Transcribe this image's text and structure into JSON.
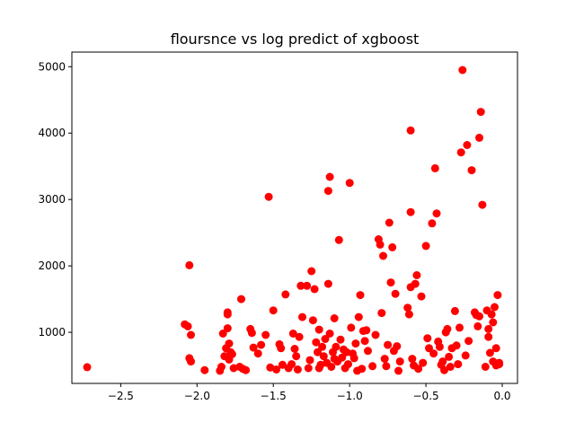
{
  "chart_data": {
    "type": "scatter",
    "title": "floursnce vs log predict of xgboost",
    "xlabel": "",
    "ylabel": "",
    "xlim": [
      -2.82,
      0.1
    ],
    "ylim": [
      230,
      5220
    ],
    "x_ticks": [
      -2.5,
      -2.0,
      -1.5,
      -1.0,
      -0.5,
      0.0
    ],
    "x_tick_labels": [
      "−2.5",
      "−2.0",
      "−1.5",
      "−1.0",
      "−0.5",
      "0.0"
    ],
    "y_ticks": [
      1000,
      2000,
      3000,
      4000,
      5000
    ],
    "y_tick_labels": [
      "1000",
      "2000",
      "3000",
      "4000",
      "5000"
    ],
    "grid": false,
    "marker_color": "#ff0000",
    "points": [
      [
        -2.72,
        475
      ],
      [
        -2.08,
        1120
      ],
      [
        -2.06,
        1090
      ],
      [
        -2.05,
        2010
      ],
      [
        -2.04,
        960
      ],
      [
        -2.05,
        610
      ],
      [
        -2.04,
        560
      ],
      [
        -1.95,
        430
      ],
      [
        -1.85,
        420
      ],
      [
        -1.84,
        480
      ],
      [
        -1.83,
        980
      ],
      [
        -1.82,
        640
      ],
      [
        -1.81,
        760
      ],
      [
        -1.8,
        1060
      ],
      [
        -1.8,
        1300
      ],
      [
        -1.8,
        1270
      ],
      [
        -1.79,
        830
      ],
      [
        -1.79,
        590
      ],
      [
        -1.78,
        700
      ],
      [
        -1.77,
        670
      ],
      [
        -1.76,
        460
      ],
      [
        -1.72,
        480
      ],
      [
        -1.71,
        1500
      ],
      [
        -1.7,
        450
      ],
      [
        -1.68,
        430
      ],
      [
        -1.65,
        1050
      ],
      [
        -1.64,
        990
      ],
      [
        -1.63,
        770
      ],
      [
        -1.6,
        680
      ],
      [
        -1.58,
        810
      ],
      [
        -1.55,
        960
      ],
      [
        -1.53,
        3040
      ],
      [
        -1.52,
        470
      ],
      [
        -1.5,
        1330
      ],
      [
        -1.48,
        440
      ],
      [
        -1.46,
        820
      ],
      [
        -1.45,
        760
      ],
      [
        -1.44,
        510
      ],
      [
        -1.42,
        1570
      ],
      [
        -1.4,
        460
      ],
      [
        -1.38,
        520
      ],
      [
        -1.37,
        980
      ],
      [
        -1.36,
        750
      ],
      [
        -1.35,
        640
      ],
      [
        -1.34,
        440
      ],
      [
        -1.33,
        930
      ],
      [
        -1.32,
        1700
      ],
      [
        -1.31,
        1230
      ],
      [
        -1.28,
        1700
      ],
      [
        -1.27,
        460
      ],
      [
        -1.26,
        580
      ],
      [
        -1.25,
        1920
      ],
      [
        -1.24,
        1180
      ],
      [
        -1.23,
        1650
      ],
      [
        -1.22,
        850
      ],
      [
        -1.21,
        700
      ],
      [
        -1.2,
        460
      ],
      [
        -1.2,
        1040
      ],
      [
        -1.19,
        510
      ],
      [
        -1.18,
        780
      ],
      [
        -1.17,
        640
      ],
      [
        -1.16,
        900
      ],
      [
        -1.15,
        540
      ],
      [
        -1.14,
        1730
      ],
      [
        -1.14,
        3130
      ],
      [
        -1.13,
        3340
      ],
      [
        -1.13,
        980
      ],
      [
        -1.12,
        480
      ],
      [
        -1.11,
        700
      ],
      [
        -1.1,
        1210
      ],
      [
        -1.1,
        600
      ],
      [
        -1.09,
        780
      ],
      [
        -1.08,
        560
      ],
      [
        -1.07,
        2390
      ],
      [
        -1.06,
        890
      ],
      [
        -1.05,
        620
      ],
      [
        -1.04,
        740
      ],
      [
        -1.03,
        460
      ],
      [
        -1.02,
        700
      ],
      [
        -1.01,
        520
      ],
      [
        -1.0,
        3250
      ],
      [
        -0.99,
        1070
      ],
      [
        -0.98,
        680
      ],
      [
        -0.97,
        610
      ],
      [
        -0.96,
        830
      ],
      [
        -0.95,
        420
      ],
      [
        -0.94,
        1230
      ],
      [
        -0.93,
        1560
      ],
      [
        -0.92,
        450
      ],
      [
        -0.91,
        1020
      ],
      [
        -0.9,
        870
      ],
      [
        -0.89,
        1030
      ],
      [
        -0.88,
        720
      ],
      [
        -0.85,
        490
      ],
      [
        -0.83,
        960
      ],
      [
        -0.81,
        2400
      ],
      [
        -0.8,
        2320
      ],
      [
        -0.79,
        1290
      ],
      [
        -0.78,
        2150
      ],
      [
        -0.77,
        600
      ],
      [
        -0.76,
        490
      ],
      [
        -0.75,
        810
      ],
      [
        -0.74,
        2650
      ],
      [
        -0.73,
        1750
      ],
      [
        -0.72,
        2280
      ],
      [
        -0.71,
        720
      ],
      [
        -0.7,
        1580
      ],
      [
        -0.69,
        790
      ],
      [
        -0.68,
        420
      ],
      [
        -0.67,
        560
      ],
      [
        -0.62,
        1370
      ],
      [
        -0.61,
        1270
      ],
      [
        -0.6,
        4040
      ],
      [
        -0.6,
        2810
      ],
      [
        -0.6,
        1680
      ],
      [
        -0.59,
        600
      ],
      [
        -0.58,
        500
      ],
      [
        -0.57,
        1730
      ],
      [
        -0.56,
        1860
      ],
      [
        -0.55,
        450
      ],
      [
        -0.53,
        1540
      ],
      [
        -0.52,
        540
      ],
      [
        -0.5,
        2300
      ],
      [
        -0.49,
        910
      ],
      [
        -0.48,
        760
      ],
      [
        -0.46,
        2640
      ],
      [
        -0.45,
        680
      ],
      [
        -0.44,
        3470
      ],
      [
        -0.43,
        2790
      ],
      [
        -0.42,
        860
      ],
      [
        -0.41,
        780
      ],
      [
        -0.4,
        510
      ],
      [
        -0.39,
        560
      ],
      [
        -0.38,
        430
      ],
      [
        -0.37,
        1000
      ],
      [
        -0.36,
        1050
      ],
      [
        -0.35,
        630
      ],
      [
        -0.34,
        480
      ],
      [
        -0.33,
        760
      ],
      [
        -0.31,
        1320
      ],
      [
        -0.3,
        800
      ],
      [
        -0.29,
        520
      ],
      [
        -0.28,
        1070
      ],
      [
        -0.27,
        3710
      ],
      [
        -0.26,
        4950
      ],
      [
        -0.24,
        650
      ],
      [
        -0.23,
        3820
      ],
      [
        -0.22,
        870
      ],
      [
        -0.2,
        3440
      ],
      [
        -0.18,
        1300
      ],
      [
        -0.17,
        1260
      ],
      [
        -0.16,
        1090
      ],
      [
        -0.15,
        1240
      ],
      [
        -0.14,
        4320
      ],
      [
        -0.15,
        3930
      ],
      [
        -0.13,
        2920
      ],
      [
        -0.11,
        480
      ],
      [
        -0.1,
        1330
      ],
      [
        -0.09,
        1050
      ],
      [
        -0.09,
        930
      ],
      [
        -0.08,
        690
      ],
      [
        -0.07,
        1270
      ],
      [
        -0.06,
        560
      ],
      [
        -0.06,
        1150
      ],
      [
        -0.05,
        1380
      ],
      [
        -0.04,
        760
      ],
      [
        -0.04,
        500
      ],
      [
        -0.03,
        1560
      ],
      [
        -0.02,
        540
      ],
      [
        -0.02,
        520
      ]
    ]
  }
}
